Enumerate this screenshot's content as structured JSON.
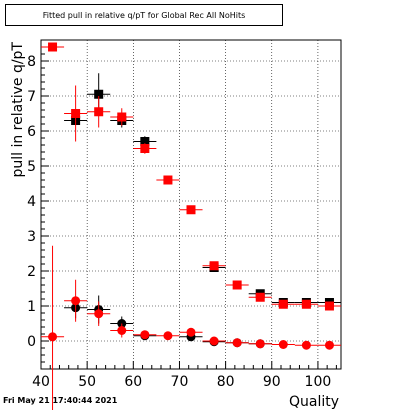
{
  "title": "Fitted pull in relative q/pT for Global Rec All NoHits",
  "footer": "Fri May 21 17:40:44 2021",
  "chart_data": {
    "type": "scatter",
    "title": "Fitted pull in relative q/pT for Global Rec All NoHits",
    "xlabel": "Quality",
    "ylabel": "pull in relative q/pT",
    "xlim": [
      40,
      105
    ],
    "ylim": [
      -0.8,
      8.6
    ],
    "x_ticks": [
      40,
      50,
      60,
      70,
      80,
      90,
      100
    ],
    "y_ticks": [
      0,
      1,
      2,
      3,
      4,
      5,
      6,
      7,
      8
    ],
    "grid": true,
    "series": [
      {
        "marker": "square",
        "color": "#000000",
        "points": [
          {
            "x": 47.5,
            "y": 6.3,
            "err": 0.0
          },
          {
            "x": 52.5,
            "y": 7.05,
            "err": 0.6
          },
          {
            "x": 57.5,
            "y": 6.3,
            "err": 0.2
          },
          {
            "x": 62.5,
            "y": 5.7,
            "err": 0.15
          },
          {
            "x": 77.5,
            "y": 2.1,
            "err": 0.05
          },
          {
            "x": 87.5,
            "y": 1.35,
            "err": 0.05
          },
          {
            "x": 92.5,
            "y": 1.1,
            "err": 0.05
          },
          {
            "x": 97.5,
            "y": 1.1,
            "err": 0.05
          },
          {
            "x": 102.5,
            "y": 1.1,
            "err": 0.05
          }
        ]
      },
      {
        "marker": "square",
        "color": "#ff0000",
        "points": [
          {
            "x": 42.5,
            "y": 8.4,
            "err": 0.0
          },
          {
            "x": 47.5,
            "y": 6.5,
            "err": 0.8
          },
          {
            "x": 52.5,
            "y": 6.55,
            "err": 0.45
          },
          {
            "x": 57.5,
            "y": 6.4,
            "err": 0.25
          },
          {
            "x": 62.5,
            "y": 5.5,
            "err": 0.15
          },
          {
            "x": 67.5,
            "y": 4.6,
            "err": 0.1
          },
          {
            "x": 72.5,
            "y": 3.75,
            "err": 0.05
          },
          {
            "x": 77.5,
            "y": 2.15,
            "err": 0.05
          },
          {
            "x": 82.5,
            "y": 1.6,
            "err": 0.05
          },
          {
            "x": 87.5,
            "y": 1.25,
            "err": 0.05
          },
          {
            "x": 92.5,
            "y": 1.05,
            "err": 0.05
          },
          {
            "x": 97.5,
            "y": 1.05,
            "err": 0.05
          },
          {
            "x": 102.5,
            "y": 1.0,
            "err": 0.05
          }
        ]
      },
      {
        "marker": "circle",
        "color": "#000000",
        "points": [
          {
            "x": 47.5,
            "y": 0.95,
            "err": 0.3
          },
          {
            "x": 52.5,
            "y": 0.9,
            "err": 0.4
          },
          {
            "x": 57.5,
            "y": 0.5,
            "err": 0.2
          },
          {
            "x": 62.5,
            "y": 0.15,
            "err": 0.1
          },
          {
            "x": 72.5,
            "y": 0.12,
            "err": 0.05
          },
          {
            "x": 77.5,
            "y": -0.02,
            "err": 0.05
          },
          {
            "x": 82.5,
            "y": -0.05,
            "err": 0.05
          },
          {
            "x": 87.5,
            "y": -0.08,
            "err": 0.05
          }
        ]
      },
      {
        "marker": "circle",
        "color": "#ff0000",
        "points": [
          {
            "x": 42.5,
            "y": 0.12,
            "err": 2.6
          },
          {
            "x": 47.5,
            "y": 1.15,
            "err": 0.6
          },
          {
            "x": 52.5,
            "y": 0.78,
            "err": 0.35
          },
          {
            "x": 57.5,
            "y": 0.3,
            "err": 0.2
          },
          {
            "x": 62.5,
            "y": 0.18,
            "err": 0.1
          },
          {
            "x": 67.5,
            "y": 0.15,
            "err": 0.08
          },
          {
            "x": 72.5,
            "y": 0.25,
            "err": 0.05
          },
          {
            "x": 77.5,
            "y": 0.0,
            "err": 0.05
          },
          {
            "x": 82.5,
            "y": -0.05,
            "err": 0.05
          },
          {
            "x": 87.5,
            "y": -0.08,
            "err": 0.05
          },
          {
            "x": 92.5,
            "y": -0.1,
            "err": 0.05
          },
          {
            "x": 97.5,
            "y": -0.12,
            "err": 0.05
          },
          {
            "x": 102.5,
            "y": -0.12,
            "err": 0.05
          }
        ]
      }
    ]
  }
}
